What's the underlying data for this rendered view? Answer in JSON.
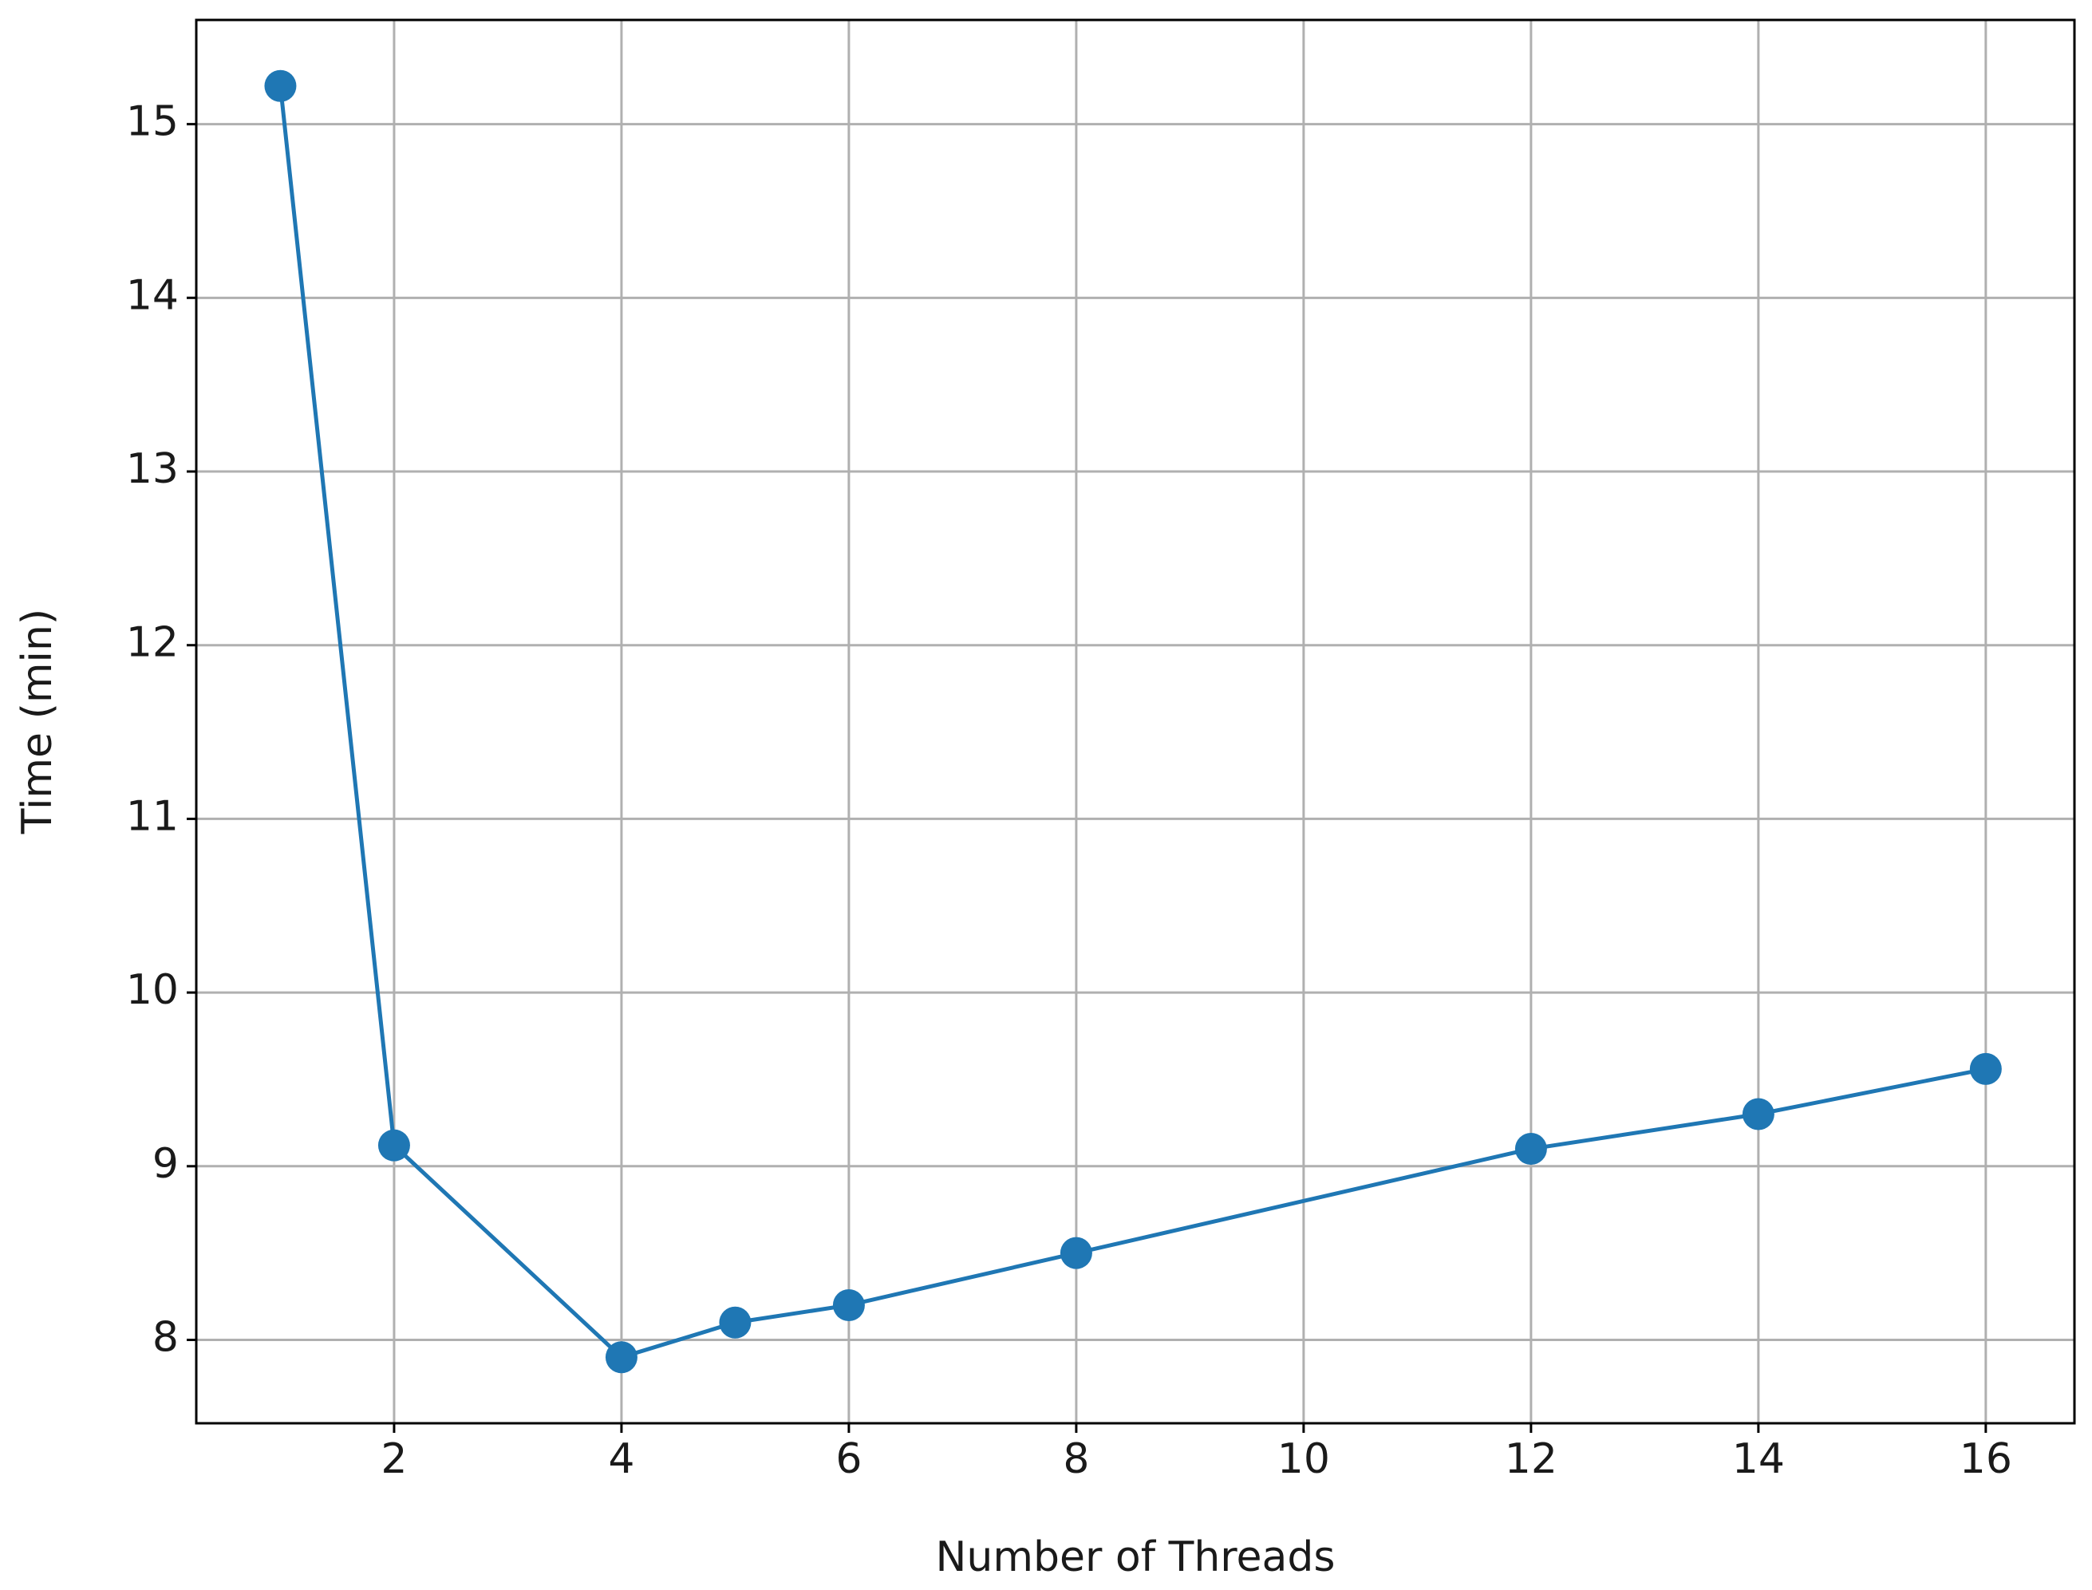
{
  "chart_data": {
    "type": "line",
    "x_label": "Number of Threads",
    "y_label": "Time (min)",
    "x": [
      1,
      2,
      4,
      5,
      6,
      8,
      12,
      14,
      16
    ],
    "series": [
      {
        "color": "#1f77b4",
        "values": [
          15.22,
          9.12,
          7.9,
          8.1,
          8.2,
          8.5,
          9.1,
          9.3,
          9.56
        ]
      }
    ],
    "xlim": [
      0.26,
      16.78
    ],
    "ylim": [
      7.52,
      15.6
    ],
    "xticks": [
      2,
      4,
      6,
      8,
      10,
      12,
      14,
      16
    ],
    "yticks": [
      8,
      9,
      10,
      11,
      12,
      13,
      14,
      15
    ],
    "grid": true
  }
}
